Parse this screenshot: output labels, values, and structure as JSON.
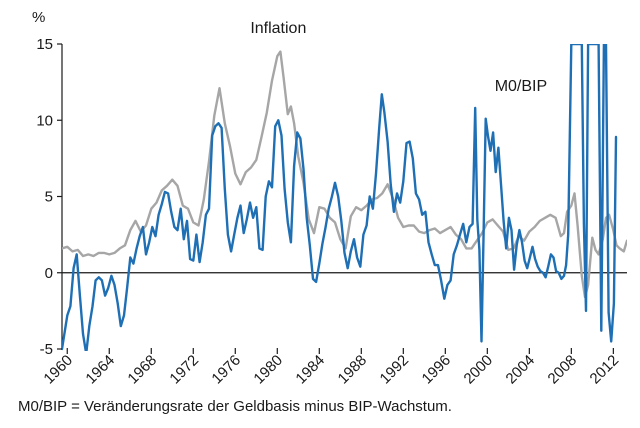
{
  "chart_data": {
    "type": "line",
    "ylabel": "%",
    "ylim": [
      -5,
      15
    ],
    "xlim": [
      1959.5,
      2013.3
    ],
    "y_ticks": [
      "15",
      "10",
      "5",
      "0",
      "-5"
    ],
    "x_ticks": [
      "1960",
      "1964",
      "1968",
      "1972",
      "1976",
      "1980",
      "1984",
      "1988",
      "1992",
      "1996",
      "2000",
      "2004",
      "2008",
      "2012"
    ],
    "grid": false,
    "series": [
      {
        "name": "Inflation",
        "color": "#a6a6a6",
        "points": [
          [
            1959.5,
            1.6
          ],
          [
            1960.0,
            1.7
          ],
          [
            1960.5,
            1.4
          ],
          [
            1961.0,
            1.5
          ],
          [
            1961.5,
            1.1
          ],
          [
            1962.0,
            1.2
          ],
          [
            1962.5,
            1.1
          ],
          [
            1963.0,
            1.3
          ],
          [
            1963.5,
            1.3
          ],
          [
            1964.0,
            1.2
          ],
          [
            1964.5,
            1.3
          ],
          [
            1965.0,
            1.6
          ],
          [
            1965.5,
            1.8
          ],
          [
            1966.0,
            2.8
          ],
          [
            1966.5,
            3.4
          ],
          [
            1967.0,
            2.7
          ],
          [
            1967.5,
            3.1
          ],
          [
            1968.0,
            4.2
          ],
          [
            1968.5,
            4.6
          ],
          [
            1969.0,
            5.4
          ],
          [
            1969.5,
            5.7
          ],
          [
            1970.0,
            6.1
          ],
          [
            1970.5,
            5.7
          ],
          [
            1971.0,
            4.4
          ],
          [
            1971.5,
            4.2
          ],
          [
            1972.0,
            3.3
          ],
          [
            1972.5,
            3.1
          ],
          [
            1973.0,
            4.8
          ],
          [
            1973.5,
            7.3
          ],
          [
            1974.0,
            10.3
          ],
          [
            1974.5,
            12.1
          ],
          [
            1975.0,
            9.8
          ],
          [
            1975.5,
            8.3
          ],
          [
            1976.0,
            6.5
          ],
          [
            1976.5,
            5.8
          ],
          [
            1977.0,
            6.6
          ],
          [
            1977.5,
            6.9
          ],
          [
            1978.0,
            7.4
          ],
          [
            1978.5,
            8.9
          ],
          [
            1979.0,
            10.5
          ],
          [
            1979.5,
            12.6
          ],
          [
            1980.0,
            14.2
          ],
          [
            1980.3,
            14.5
          ],
          [
            1980.6,
            12.8
          ],
          [
            1981.0,
            10.4
          ],
          [
            1981.3,
            10.9
          ],
          [
            1981.6,
            9.8
          ],
          [
            1982.0,
            7.6
          ],
          [
            1982.5,
            5.9
          ],
          [
            1983.0,
            3.5
          ],
          [
            1983.5,
            2.6
          ],
          [
            1984.0,
            4.3
          ],
          [
            1984.5,
            4.2
          ],
          [
            1985.0,
            3.6
          ],
          [
            1985.5,
            3.3
          ],
          [
            1986.0,
            2.2
          ],
          [
            1986.5,
            1.6
          ],
          [
            1987.0,
            3.7
          ],
          [
            1987.5,
            4.3
          ],
          [
            1988.0,
            4.1
          ],
          [
            1988.5,
            4.4
          ],
          [
            1989.0,
            4.8
          ],
          [
            1989.5,
            4.9
          ],
          [
            1990.0,
            5.2
          ],
          [
            1990.5,
            5.8
          ],
          [
            1991.0,
            4.9
          ],
          [
            1991.5,
            3.6
          ],
          [
            1992.0,
            3.0
          ],
          [
            1992.5,
            3.1
          ],
          [
            1993.0,
            3.1
          ],
          [
            1993.5,
            2.7
          ],
          [
            1994.0,
            2.6
          ],
          [
            1994.5,
            2.8
          ],
          [
            1995.0,
            2.9
          ],
          [
            1995.5,
            2.6
          ],
          [
            1996.0,
            2.8
          ],
          [
            1996.5,
            3.0
          ],
          [
            1997.0,
            2.5
          ],
          [
            1997.5,
            2.2
          ],
          [
            1998.0,
            1.6
          ],
          [
            1998.5,
            1.6
          ],
          [
            1999.0,
            2.1
          ],
          [
            1999.5,
            2.6
          ],
          [
            2000.0,
            3.3
          ],
          [
            2000.5,
            3.5
          ],
          [
            2001.0,
            3.1
          ],
          [
            2001.5,
            2.7
          ],
          [
            2002.0,
            1.5
          ],
          [
            2002.5,
            1.6
          ],
          [
            2003.0,
            2.4
          ],
          [
            2003.5,
            2.1
          ],
          [
            2004.0,
            2.7
          ],
          [
            2004.5,
            3.0
          ],
          [
            2005.0,
            3.4
          ],
          [
            2005.5,
            3.6
          ],
          [
            2006.0,
            3.8
          ],
          [
            2006.5,
            3.6
          ],
          [
            2007.0,
            2.4
          ],
          [
            2007.3,
            2.6
          ],
          [
            2007.6,
            4.0
          ],
          [
            2008.0,
            4.4
          ],
          [
            2008.3,
            5.2
          ],
          [
            2008.6,
            3.1
          ],
          [
            2009.0,
            -0.2
          ],
          [
            2009.3,
            -1.6
          ],
          [
            2009.6,
            -0.8
          ],
          [
            2010.0,
            2.3
          ],
          [
            2010.3,
            1.5
          ],
          [
            2010.6,
            1.2
          ],
          [
            2011.0,
            2.2
          ],
          [
            2011.3,
            3.6
          ],
          [
            2011.6,
            3.8
          ],
          [
            2012.0,
            2.8
          ],
          [
            2012.3,
            1.8
          ],
          [
            2012.6,
            1.6
          ],
          [
            2013.0,
            1.4
          ],
          [
            2013.3,
            2.1
          ]
        ]
      },
      {
        "name": "M0/BIP",
        "color": "#1f6fb5",
        "points": [
          [
            1959.5,
            -5.0
          ],
          [
            1960.0,
            -2.8
          ],
          [
            1960.3,
            -2.2
          ],
          [
            1960.6,
            0.3
          ],
          [
            1960.9,
            1.2
          ],
          [
            1961.2,
            -1.5
          ],
          [
            1961.5,
            -4.0
          ],
          [
            1961.8,
            -5.3
          ],
          [
            1962.1,
            -3.5
          ],
          [
            1962.4,
            -2.2
          ],
          [
            1962.7,
            -0.5
          ],
          [
            1963.0,
            -0.3
          ],
          [
            1963.3,
            -0.5
          ],
          [
            1963.6,
            -1.5
          ],
          [
            1963.9,
            -1.0
          ],
          [
            1964.2,
            -0.2
          ],
          [
            1964.5,
            -0.8
          ],
          [
            1964.8,
            -2.0
          ],
          [
            1965.1,
            -3.5
          ],
          [
            1965.4,
            -2.8
          ],
          [
            1965.7,
            -1.0
          ],
          [
            1966.0,
            1.0
          ],
          [
            1966.3,
            0.6
          ],
          [
            1966.6,
            1.6
          ],
          [
            1966.9,
            2.4
          ],
          [
            1967.2,
            3.0
          ],
          [
            1967.5,
            1.2
          ],
          [
            1967.8,
            2.0
          ],
          [
            1968.1,
            3.0
          ],
          [
            1968.4,
            2.4
          ],
          [
            1968.7,
            3.8
          ],
          [
            1969.0,
            4.5
          ],
          [
            1969.3,
            5.3
          ],
          [
            1969.6,
            5.2
          ],
          [
            1969.9,
            4.0
          ],
          [
            1970.2,
            3.0
          ],
          [
            1970.5,
            2.8
          ],
          [
            1970.8,
            4.2
          ],
          [
            1971.1,
            2.2
          ],
          [
            1971.4,
            3.4
          ],
          [
            1971.7,
            0.9
          ],
          [
            1972.0,
            0.8
          ],
          [
            1972.3,
            2.5
          ],
          [
            1972.6,
            0.7
          ],
          [
            1972.9,
            2.0
          ],
          [
            1973.2,
            3.8
          ],
          [
            1973.5,
            4.2
          ],
          [
            1973.8,
            9.0
          ],
          [
            1974.1,
            9.6
          ],
          [
            1974.4,
            9.8
          ],
          [
            1974.7,
            9.5
          ],
          [
            1975.0,
            5.5
          ],
          [
            1975.3,
            2.5
          ],
          [
            1975.6,
            1.4
          ],
          [
            1975.9,
            2.5
          ],
          [
            1976.2,
            3.6
          ],
          [
            1976.5,
            4.4
          ],
          [
            1976.8,
            2.6
          ],
          [
            1977.1,
            3.5
          ],
          [
            1977.4,
            4.6
          ],
          [
            1977.7,
            3.6
          ],
          [
            1978.0,
            4.3
          ],
          [
            1978.3,
            1.6
          ],
          [
            1978.6,
            1.5
          ],
          [
            1978.9,
            5.0
          ],
          [
            1979.2,
            6.0
          ],
          [
            1979.5,
            5.6
          ],
          [
            1979.8,
            9.6
          ],
          [
            1980.1,
            10.0
          ],
          [
            1980.4,
            9.0
          ],
          [
            1980.7,
            5.5
          ],
          [
            1981.0,
            3.3
          ],
          [
            1981.3,
            2.0
          ],
          [
            1981.6,
            7.0
          ],
          [
            1981.9,
            9.2
          ],
          [
            1982.2,
            8.8
          ],
          [
            1982.5,
            6.8
          ],
          [
            1982.8,
            3.6
          ],
          [
            1983.1,
            1.8
          ],
          [
            1983.4,
            -0.4
          ],
          [
            1983.7,
            -0.6
          ],
          [
            1984.0,
            0.6
          ],
          [
            1984.3,
            1.9
          ],
          [
            1984.6,
            3.0
          ],
          [
            1984.9,
            4.2
          ],
          [
            1985.2,
            5.0
          ],
          [
            1985.5,
            5.9
          ],
          [
            1985.8,
            5.0
          ],
          [
            1986.1,
            3.4
          ],
          [
            1986.4,
            1.3
          ],
          [
            1986.7,
            0.3
          ],
          [
            1987.0,
            1.4
          ],
          [
            1987.3,
            2.2
          ],
          [
            1987.6,
            1.0
          ],
          [
            1987.9,
            0.4
          ],
          [
            1988.2,
            2.5
          ],
          [
            1988.5,
            3.1
          ],
          [
            1988.8,
            5.0
          ],
          [
            1989.1,
            4.2
          ],
          [
            1989.4,
            6.5
          ],
          [
            1989.7,
            9.5
          ],
          [
            1989.95,
            11.7
          ],
          [
            1990.2,
            10.5
          ],
          [
            1990.5,
            8.6
          ],
          [
            1990.8,
            5.8
          ],
          [
            1991.1,
            4.0
          ],
          [
            1991.4,
            5.2
          ],
          [
            1991.7,
            4.6
          ],
          [
            1992.0,
            6.0
          ],
          [
            1992.3,
            8.5
          ],
          [
            1992.6,
            8.6
          ],
          [
            1992.9,
            7.5
          ],
          [
            1993.2,
            5.2
          ],
          [
            1993.5,
            4.8
          ],
          [
            1993.8,
            3.8
          ],
          [
            1994.1,
            4.0
          ],
          [
            1994.4,
            2.0
          ],
          [
            1994.7,
            1.2
          ],
          [
            1995.0,
            0.5
          ],
          [
            1995.3,
            0.5
          ],
          [
            1995.6,
            -0.5
          ],
          [
            1995.9,
            -1.7
          ],
          [
            1996.2,
            -0.8
          ],
          [
            1996.5,
            -0.5
          ],
          [
            1996.8,
            1.2
          ],
          [
            1997.1,
            1.8
          ],
          [
            1997.4,
            2.5
          ],
          [
            1997.7,
            3.2
          ],
          [
            1998.0,
            2.0
          ],
          [
            1998.3,
            3.0
          ],
          [
            1998.6,
            3.2
          ],
          [
            1998.85,
            10.8
          ],
          [
            1999.05,
            3.5
          ],
          [
            1999.25,
            1.5
          ],
          [
            1999.45,
            -4.5
          ],
          [
            1999.65,
            2.6
          ],
          [
            1999.85,
            10.1
          ],
          [
            2000.05,
            9.0
          ],
          [
            2000.3,
            8.0
          ],
          [
            2000.55,
            9.2
          ],
          [
            2000.8,
            6.6
          ],
          [
            2001.05,
            8.2
          ],
          [
            2001.3,
            5.8
          ],
          [
            2001.55,
            3.4
          ],
          [
            2001.8,
            1.6
          ],
          [
            2002.05,
            3.6
          ],
          [
            2002.3,
            2.8
          ],
          [
            2002.55,
            0.2
          ],
          [
            2002.8,
            1.8
          ],
          [
            2003.05,
            2.8
          ],
          [
            2003.3,
            2.0
          ],
          [
            2003.55,
            0.8
          ],
          [
            2003.8,
            0.3
          ],
          [
            2004.05,
            1.0
          ],
          [
            2004.3,
            1.7
          ],
          [
            2004.55,
            0.9
          ],
          [
            2004.8,
            0.4
          ],
          [
            2005.05,
            0.1
          ],
          [
            2005.3,
            0.0
          ],
          [
            2005.55,
            -0.3
          ],
          [
            2005.8,
            0.4
          ],
          [
            2006.05,
            1.2
          ],
          [
            2006.3,
            1.0
          ],
          [
            2006.55,
            0.1
          ],
          [
            2006.8,
            0.0
          ],
          [
            2007.05,
            -0.4
          ],
          [
            2007.3,
            -0.2
          ],
          [
            2007.5,
            0.5
          ],
          [
            2007.7,
            2.5
          ],
          [
            2008.0,
            15.0
          ],
          [
            2008.3,
            15.0
          ],
          [
            2008.55,
            15.0
          ],
          [
            2008.75,
            15.0
          ],
          [
            2009.0,
            15.0
          ],
          [
            2009.2,
            3.2
          ],
          [
            2009.4,
            -2.5
          ],
          [
            2009.6,
            15.0
          ],
          [
            2009.85,
            15.0
          ],
          [
            2010.1,
            15.0
          ],
          [
            2010.35,
            15.0
          ],
          [
            2010.6,
            15.0
          ],
          [
            2010.85,
            -3.8
          ],
          [
            2011.1,
            15.0
          ],
          [
            2011.3,
            15.0
          ],
          [
            2011.55,
            -2.6
          ],
          [
            2011.8,
            -4.5
          ],
          [
            2012.05,
            -2.0
          ],
          [
            2012.25,
            8.9
          ]
        ]
      }
    ],
    "annotations": [
      {
        "text": "Inflation",
        "x": 1980.1,
        "y": 15.2
      },
      {
        "text": "M0/BIP",
        "x": 2003.2,
        "y": 11.4
      }
    ]
  },
  "footnote": "M0/BIP = Veränderungsrate der Geldbasis minus BIP-Wachstum."
}
